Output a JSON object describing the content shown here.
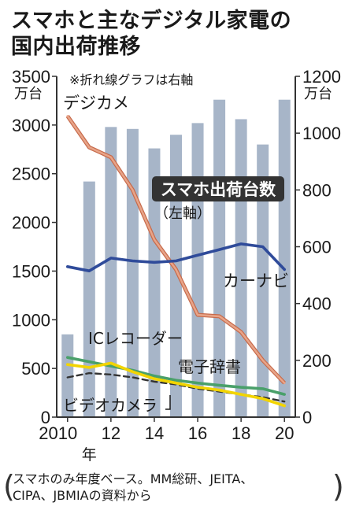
{
  "title_line1": "スマホと主なデジタル家電の",
  "title_line2": "国内出荷推移",
  "note": "※折れ線グラフは右軸",
  "source_line1": "スマホのみ年度ベース。MM総研、JEITA、",
  "source_line2": "CIPA、JBMIAの資料から",
  "chart_data": {
    "type": "bar",
    "x_ticks": [
      "2010",
      "12",
      "14",
      "16",
      "18",
      "20"
    ],
    "x_unit_label": "年",
    "y_left": {
      "unit": "万台",
      "ylim": [
        0,
        3500
      ],
      "ticks": [
        0,
        500,
        1000,
        1500,
        2000,
        2500,
        3000,
        3500
      ]
    },
    "y_right": {
      "unit": "万台",
      "ylim": [
        0,
        1200
      ],
      "ticks": [
        0,
        200,
        400,
        600,
        800,
        1000,
        1200
      ]
    },
    "categories": [
      2010,
      2011,
      2012,
      2013,
      2014,
      2015,
      2016,
      2017,
      2018,
      2019,
      2020
    ],
    "series": [
      {
        "name": "スマホ出荷台数",
        "sublabel": "（左軸）",
        "type": "bar",
        "axis": "left",
        "color": "#a7b5c8",
        "values": [
          850,
          2420,
          2980,
          2960,
          2760,
          2900,
          3020,
          3260,
          3060,
          2800,
          3260
        ]
      },
      {
        "name": "デジカメ",
        "type": "line",
        "axis": "right",
        "color": "#e8a488",
        "values": [
          1060,
          950,
          915,
          800,
          625,
          520,
          360,
          355,
          300,
          200,
          120
        ]
      },
      {
        "name": "カーナビ",
        "type": "line",
        "axis": "right",
        "color": "#2f4b9a",
        "values": [
          530,
          515,
          560,
          550,
          545,
          550,
          570,
          590,
          610,
          600,
          520
        ]
      },
      {
        "name": "電子辞書",
        "type": "line",
        "axis": "right",
        "color": "#4aa06a",
        "values": [
          210,
          195,
          180,
          165,
          145,
          130,
          120,
          112,
          105,
          100,
          80
        ]
      },
      {
        "name": "ICレコーダー",
        "type": "line",
        "axis": "right",
        "color": "#333333",
        "dashed": true,
        "values": [
          140,
          155,
          150,
          140,
          125,
          115,
          100,
          90,
          80,
          70,
          55
        ]
      },
      {
        "name": "ビデオカメラ",
        "type": "line",
        "axis": "right",
        "color": "#f2d400",
        "values": [
          185,
          175,
          190,
          160,
          135,
          120,
          105,
          95,
          80,
          65,
          40
        ]
      }
    ]
  }
}
